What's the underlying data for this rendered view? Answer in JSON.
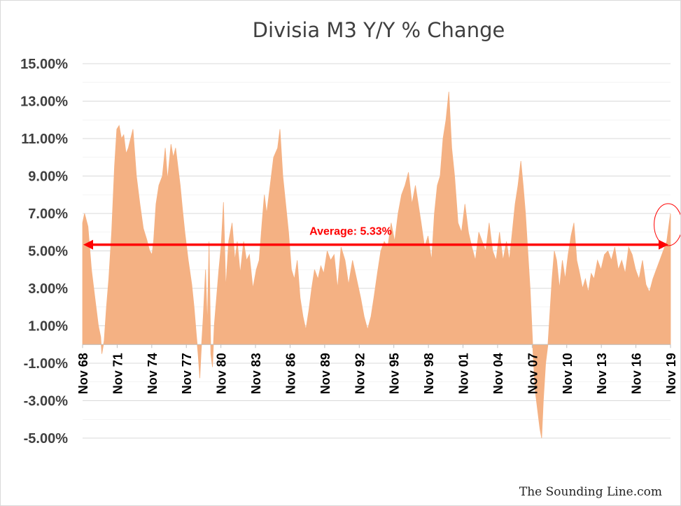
{
  "chart_data": {
    "type": "area",
    "title": "Divisia M3 Y/Y % Change",
    "xlabel": "",
    "ylabel": "",
    "ylim": [
      -5.0,
      15.0
    ],
    "y_ticks": [
      "15.00%",
      "13.00%",
      "11.00%",
      "9.00%",
      "7.00%",
      "5.00%",
      "3.00%",
      "1.00%",
      "-1.00%",
      "-3.00%",
      "-5.00%"
    ],
    "y_tick_values": [
      15,
      13,
      11,
      9,
      7,
      5,
      3,
      1,
      -1,
      -3,
      -5
    ],
    "x_ticks": [
      "Nov 68",
      "Nov 71",
      "Nov 74",
      "Nov 77",
      "Nov 80",
      "Nov 83",
      "Nov 86",
      "Nov 89",
      "Nov 92",
      "Nov 95",
      "Nov 98",
      "Nov 01",
      "Nov 04",
      "Nov 07",
      "Nov 10",
      "Nov 13",
      "Nov 16",
      "Nov 19"
    ],
    "x_tick_values": [
      1968.83,
      1971.83,
      1974.83,
      1977.83,
      1980.83,
      1983.83,
      1986.83,
      1989.83,
      1992.83,
      1995.83,
      1998.83,
      2001.83,
      2004.83,
      2007.83,
      2010.83,
      2013.83,
      2016.83,
      2019.83
    ],
    "xlim": [
      1968.83,
      2019.83
    ],
    "grid": true,
    "series": [
      {
        "color": "#f4b183",
        "points": [
          [
            1968.83,
            6.5
          ],
          [
            1969.0,
            7.0
          ],
          [
            1969.3,
            6.3
          ],
          [
            1969.6,
            4.0
          ],
          [
            1969.9,
            2.5
          ],
          [
            1970.2,
            1.0
          ],
          [
            1970.4,
            0.4
          ],
          [
            1970.5,
            -0.5
          ],
          [
            1970.7,
            0.2
          ],
          [
            1970.9,
            2.0
          ],
          [
            1971.1,
            3.5
          ],
          [
            1971.35,
            6.0
          ],
          [
            1971.6,
            9.5
          ],
          [
            1971.8,
            11.5
          ],
          [
            1972.0,
            11.7
          ],
          [
            1972.2,
            11.0
          ],
          [
            1972.4,
            11.2
          ],
          [
            1972.6,
            10.2
          ],
          [
            1972.8,
            10.5
          ],
          [
            1973.0,
            11.0
          ],
          [
            1973.2,
            11.5
          ],
          [
            1973.5,
            9.0
          ],
          [
            1973.8,
            7.5
          ],
          [
            1974.1,
            6.2
          ],
          [
            1974.4,
            5.6
          ],
          [
            1974.65,
            5.0
          ],
          [
            1974.85,
            4.8
          ],
          [
            1975.0,
            5.6
          ],
          [
            1975.2,
            7.5
          ],
          [
            1975.45,
            8.5
          ],
          [
            1975.75,
            9.0
          ],
          [
            1976.0,
            10.5
          ],
          [
            1976.2,
            8.8
          ],
          [
            1976.5,
            10.7
          ],
          [
            1976.7,
            10.0
          ],
          [
            1976.9,
            10.5
          ],
          [
            1977.1,
            9.5
          ],
          [
            1977.3,
            8.5
          ],
          [
            1977.5,
            7.2
          ],
          [
            1977.7,
            6.0
          ],
          [
            1978.0,
            4.5
          ],
          [
            1978.3,
            3.2
          ],
          [
            1978.5,
            2.0
          ],
          [
            1978.7,
            0.5
          ],
          [
            1978.85,
            -0.5
          ],
          [
            1979.0,
            -1.8
          ],
          [
            1979.1,
            -0.5
          ],
          [
            1979.3,
            1.5
          ],
          [
            1979.5,
            4.0
          ],
          [
            1979.65,
            1.0
          ],
          [
            1979.8,
            5.5
          ],
          [
            1979.95,
            -0.5
          ],
          [
            1980.1,
            -1.2
          ],
          [
            1980.25,
            1.0
          ],
          [
            1980.45,
            2.5
          ],
          [
            1980.65,
            4.0
          ],
          [
            1980.85,
            5.3
          ],
          [
            1981.05,
            7.6
          ],
          [
            1981.25,
            3.0
          ],
          [
            1981.5,
            5.5
          ],
          [
            1981.8,
            6.5
          ],
          [
            1982.05,
            4.5
          ],
          [
            1982.25,
            5.5
          ],
          [
            1982.5,
            3.8
          ],
          [
            1982.8,
            5.5
          ],
          [
            1983.05,
            4.5
          ],
          [
            1983.3,
            4.8
          ],
          [
            1983.6,
            3.0
          ],
          [
            1983.9,
            4.0
          ],
          [
            1984.15,
            4.5
          ],
          [
            1984.4,
            6.5
          ],
          [
            1984.6,
            8.0
          ],
          [
            1984.8,
            7.0
          ],
          [
            1985.1,
            8.5
          ],
          [
            1985.4,
            10.0
          ],
          [
            1985.75,
            10.5
          ],
          [
            1985.95,
            11.5
          ],
          [
            1986.2,
            9.0
          ],
          [
            1986.45,
            7.5
          ],
          [
            1986.7,
            6.0
          ],
          [
            1986.95,
            4.0
          ],
          [
            1987.2,
            3.5
          ],
          [
            1987.45,
            4.5
          ],
          [
            1987.7,
            2.5
          ],
          [
            1987.95,
            1.5
          ],
          [
            1988.2,
            0.8
          ],
          [
            1988.45,
            1.8
          ],
          [
            1988.7,
            3.0
          ],
          [
            1988.95,
            4.0
          ],
          [
            1989.25,
            3.5
          ],
          [
            1989.5,
            4.2
          ],
          [
            1989.75,
            3.8
          ],
          [
            1990.05,
            5.0
          ],
          [
            1990.35,
            4.5
          ],
          [
            1990.65,
            4.8
          ],
          [
            1990.95,
            3.0
          ],
          [
            1991.25,
            5.2
          ],
          [
            1991.6,
            4.5
          ],
          [
            1991.9,
            3.2
          ],
          [
            1992.25,
            4.5
          ],
          [
            1992.6,
            3.5
          ],
          [
            1992.95,
            2.5
          ],
          [
            1993.25,
            1.5
          ],
          [
            1993.55,
            0.8
          ],
          [
            1993.85,
            1.5
          ],
          [
            1994.1,
            2.5
          ],
          [
            1994.4,
            3.8
          ],
          [
            1994.7,
            5.0
          ],
          [
            1995.0,
            5.5
          ],
          [
            1995.3,
            5.2
          ],
          [
            1995.6,
            6.5
          ],
          [
            1995.9,
            5.5
          ],
          [
            1996.2,
            7.0
          ],
          [
            1996.5,
            8.0
          ],
          [
            1996.8,
            8.5
          ],
          [
            1997.1,
            9.2
          ],
          [
            1997.4,
            7.5
          ],
          [
            1997.7,
            8.5
          ],
          [
            1997.95,
            7.5
          ],
          [
            1998.2,
            6.5
          ],
          [
            1998.5,
            5.2
          ],
          [
            1998.8,
            5.8
          ],
          [
            1999.1,
            4.5
          ],
          [
            1999.35,
            7.0
          ],
          [
            1999.6,
            8.5
          ],
          [
            1999.85,
            9.0
          ],
          [
            2000.1,
            11.0
          ],
          [
            2000.35,
            12.0
          ],
          [
            2000.6,
            13.5
          ],
          [
            2000.85,
            10.5
          ],
          [
            2001.1,
            9.0
          ],
          [
            2001.4,
            6.5
          ],
          [
            2001.7,
            6.0
          ],
          [
            2002.0,
            7.5
          ],
          [
            2002.3,
            6.0
          ],
          [
            2002.6,
            5.2
          ],
          [
            2002.9,
            4.5
          ],
          [
            2003.2,
            6.0
          ],
          [
            2003.5,
            5.5
          ],
          [
            2003.8,
            5.0
          ],
          [
            2004.1,
            6.5
          ],
          [
            2004.4,
            5.0
          ],
          [
            2004.7,
            4.5
          ],
          [
            2005.0,
            6.0
          ],
          [
            2005.3,
            4.5
          ],
          [
            2005.6,
            5.5
          ],
          [
            2005.85,
            4.5
          ],
          [
            2006.1,
            6.0
          ],
          [
            2006.35,
            7.5
          ],
          [
            2006.6,
            8.5
          ],
          [
            2006.85,
            9.8
          ],
          [
            2007.05,
            8.5
          ],
          [
            2007.25,
            7.0
          ],
          [
            2007.45,
            5.0
          ],
          [
            2007.65,
            3.0
          ],
          [
            2007.8,
            1.0
          ],
          [
            2007.95,
            -1.0
          ],
          [
            2008.1,
            -2.5
          ],
          [
            2008.3,
            -3.5
          ],
          [
            2008.5,
            -4.5
          ],
          [
            2008.65,
            -5.0
          ],
          [
            2008.8,
            -3.0
          ],
          [
            2009.0,
            -1.0
          ],
          [
            2009.2,
            0.0
          ],
          [
            2009.35,
            1.5
          ],
          [
            2009.55,
            3.5
          ],
          [
            2009.75,
            5.0
          ],
          [
            2009.95,
            4.5
          ],
          [
            2010.2,
            3.0
          ],
          [
            2010.45,
            4.5
          ],
          [
            2010.7,
            3.5
          ],
          [
            2010.95,
            4.8
          ],
          [
            2011.2,
            5.8
          ],
          [
            2011.45,
            6.5
          ],
          [
            2011.7,
            4.5
          ],
          [
            2011.95,
            3.8
          ],
          [
            2012.2,
            3.0
          ],
          [
            2012.45,
            3.5
          ],
          [
            2012.7,
            2.8
          ],
          [
            2012.95,
            3.8
          ],
          [
            2013.2,
            3.5
          ],
          [
            2013.5,
            4.5
          ],
          [
            2013.8,
            4.0
          ],
          [
            2014.1,
            4.8
          ],
          [
            2014.4,
            5.0
          ],
          [
            2014.7,
            4.5
          ],
          [
            2015.0,
            5.2
          ],
          [
            2015.3,
            4.0
          ],
          [
            2015.6,
            4.5
          ],
          [
            2015.9,
            3.8
          ],
          [
            2016.2,
            5.2
          ],
          [
            2016.5,
            4.8
          ],
          [
            2016.8,
            4.0
          ],
          [
            2017.1,
            3.5
          ],
          [
            2017.4,
            4.5
          ],
          [
            2017.7,
            3.2
          ],
          [
            2018.0,
            2.8
          ],
          [
            2018.3,
            3.5
          ],
          [
            2018.6,
            4.0
          ],
          [
            2018.9,
            4.5
          ],
          [
            2019.2,
            5.0
          ],
          [
            2019.5,
            5.5
          ],
          [
            2019.83,
            7.0
          ]
        ]
      }
    ],
    "average": {
      "label": "Average: 5.33%",
      "value": 5.33,
      "color": "#ff0000"
    },
    "annotations": [
      {
        "type": "ellipse",
        "color": "#ff0000",
        "x": 2019.5,
        "y": 6.4,
        "note_text": ""
      }
    ]
  },
  "colors": {
    "area_fill": "#f4b183",
    "gridline": "#d9d9d9",
    "accent": "#ff0000",
    "baseline": "#bfbfbf"
  },
  "credit": "The Sounding Line.com"
}
